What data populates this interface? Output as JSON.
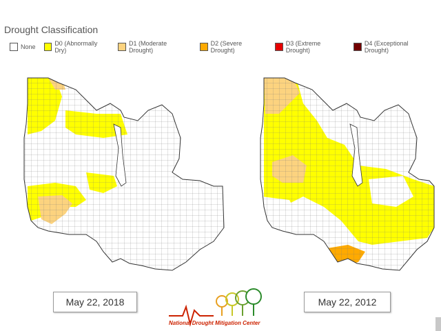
{
  "header": {
    "title": "Drought Classification"
  },
  "legend": {
    "items": [
      {
        "label": "None",
        "color": "#ffffff"
      },
      {
        "label": "D0 (Abnormally Dry)",
        "color": "#ffff00"
      },
      {
        "label": "D1 (Moderate Drought)",
        "color": "#fcd37f"
      },
      {
        "label": "D2 (Severe Drought)",
        "color": "#ffaa00"
      },
      {
        "label": "D3 (Extreme Drought)",
        "color": "#e60000"
      },
      {
        "label": "D4 (Exceptional Drought)",
        "color": "#730000"
      }
    ]
  },
  "maps": {
    "left_date": "May 22, 2018",
    "right_date": "May 22, 2012"
  },
  "logo": {
    "text": "National Drought Mitigation Center"
  }
}
